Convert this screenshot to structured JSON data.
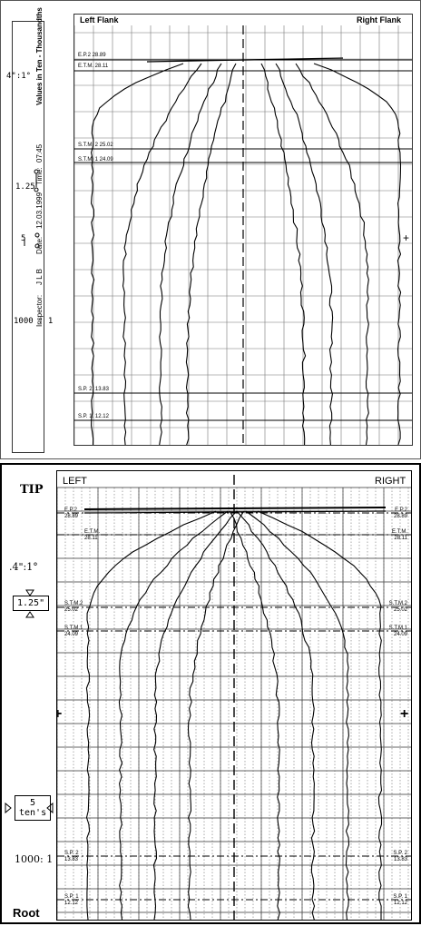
{
  "top_panel": {
    "left_flank": "Left Flank",
    "right_flank": "Right Flank",
    "sidebar": {
      "values_label": "Values in Ten - Thousandths",
      "time_label": "Time:",
      "time_value": "07:45",
      "date_label": "Date:",
      "date_value": "12.03.1999",
      "inspector_label": "Inspector:",
      "inspector_value": "J L B",
      "scale_top": "4\":1°",
      "scale_mid": "1.25",
      "scale_low": "5",
      "magnification": "1000 : 1"
    },
    "markers": {
      "ep2": "E.P.2 28.89",
      "etm": "E.T.M. 28.11",
      "stm2": "S.T.M. 2 25.02",
      "stm1": "S.T.M. 1 24.09",
      "sp2": "S.P. 2. 13.83",
      "sp1": "S.P. 1. 12.12"
    }
  },
  "bottom_panel": {
    "left": "LEFT",
    "right": "RIGHT",
    "tip": "TIP",
    "root": "Root",
    "scale_top": ".4\":1°",
    "scale_mid": "1.25\"",
    "scale_low_value": "5",
    "scale_low_unit": "ten's",
    "magnification": "1000: 1",
    "markers_left": {
      "ep2_name": "E.P.2",
      "ep2_value": "28.89",
      "etm_name": "E.T.M.",
      "etm_value": "28.11",
      "stm2_name": "S.T.M.2",
      "stm2_value": "25.02",
      "stm1_name": "S.T.M.1",
      "stm1_value": "24.09",
      "sp2_name": "S.P. 2",
      "sp2_value": "13.83",
      "sp1_name": "S.P. 1",
      "sp1_value": "12.12"
    },
    "markers_right": {
      "ep2_name": "E.P.2",
      "ep2_value": "28.89",
      "etm_name": "E.T.M.",
      "etm_value": "28.11",
      "stm2_name": "S.T.M.2",
      "stm2_value": "25.02",
      "stm1_name": "S.T.M.1",
      "stm1_value": "24.09",
      "sp2_name": "S.P. 2",
      "sp2_value": "13.83",
      "sp1_name": "S.P. 1",
      "sp1_value": "12.12"
    }
  }
}
